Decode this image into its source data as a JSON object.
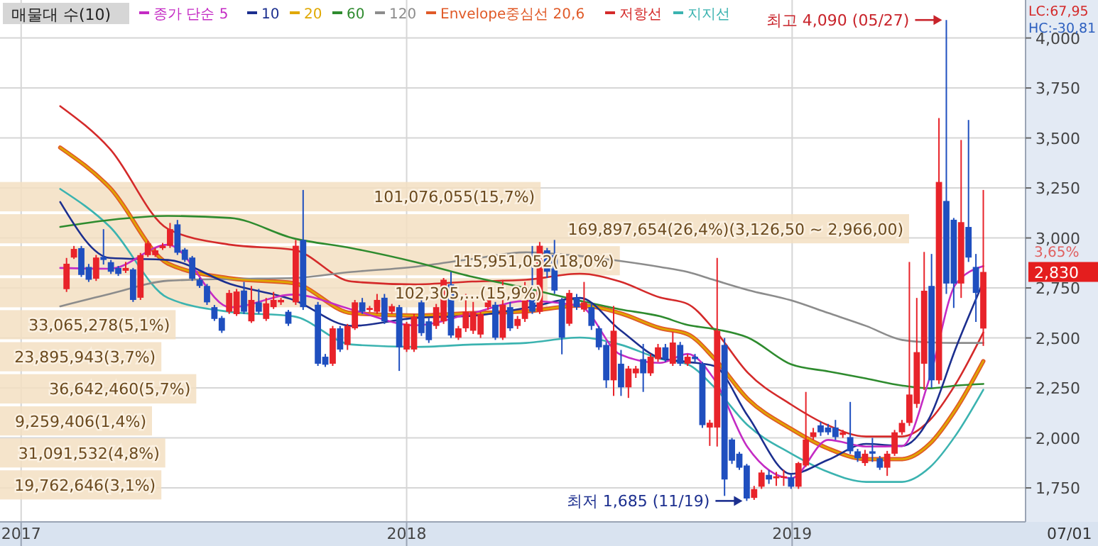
{
  "chart_data": {
    "type": "candlestick",
    "xlim": [
      "2016-12-12",
      "2019-08-10"
    ],
    "xticks": [
      {
        "value": "2017-01-01",
        "label": "2017"
      },
      {
        "value": "2018-01-01",
        "label": "2018"
      },
      {
        "value": "2019-01-01",
        "label": "2019"
      }
    ],
    "ylim": [
      1580,
      4190
    ],
    "yticks": [
      {
        "value": 1750,
        "label": "1,750"
      },
      {
        "value": 2000,
        "label": "2,000"
      },
      {
        "value": 2250,
        "label": "2,250"
      },
      {
        "value": 2500,
        "label": "2,500"
      },
      {
        "value": 2750,
        "label": "2,750"
      },
      {
        "value": 3000,
        "label": "3,000"
      },
      {
        "value": 3250,
        "label": "3,250"
      },
      {
        "value": 3500,
        "label": "3,500"
      },
      {
        "value": 3750,
        "label": "3,750"
      },
      {
        "value": 4000,
        "label": "4,000"
      }
    ],
    "grid": true,
    "legend": "top left",
    "x": [
      "2017-02-13",
      "2017-02-20",
      "2017-02-27",
      "2017-03-06",
      "2017-03-13",
      "2017-03-20",
      "2017-03-27",
      "2017-04-03",
      "2017-04-10",
      "2017-04-17",
      "2017-04-24",
      "2017-05-01",
      "2017-05-08",
      "2017-05-15",
      "2017-05-22",
      "2017-05-29",
      "2017-06-05",
      "2017-06-12",
      "2017-06-19",
      "2017-06-26",
      "2017-07-03",
      "2017-07-10",
      "2017-07-17",
      "2017-07-24",
      "2017-07-31",
      "2017-08-07",
      "2017-08-14",
      "2017-08-21",
      "2017-08-28",
      "2017-09-04",
      "2017-09-11",
      "2017-09-18",
      "2017-09-25",
      "2017-10-09",
      "2017-10-16",
      "2017-10-23",
      "2017-10-30",
      "2017-11-06",
      "2017-11-13",
      "2017-11-20",
      "2017-11-27",
      "2017-12-04",
      "2017-12-11",
      "2017-12-18",
      "2017-12-25",
      "2018-01-01",
      "2018-01-08",
      "2018-01-15",
      "2018-01-22",
      "2018-01-29",
      "2018-02-05",
      "2018-02-12",
      "2018-02-19",
      "2018-02-26",
      "2018-03-05",
      "2018-03-12",
      "2018-03-19",
      "2018-03-26",
      "2018-04-02",
      "2018-04-09",
      "2018-04-16",
      "2018-04-23",
      "2018-04-30",
      "2018-05-07",
      "2018-05-14",
      "2018-05-21",
      "2018-05-28",
      "2018-06-04",
      "2018-06-11",
      "2018-06-18",
      "2018-06-25",
      "2018-07-02",
      "2018-07-09",
      "2018-07-16",
      "2018-07-23",
      "2018-07-30",
      "2018-08-06",
      "2018-08-13",
      "2018-08-20",
      "2018-08-27",
      "2018-09-03",
      "2018-09-10",
      "2018-09-17",
      "2018-09-24",
      "2018-10-01",
      "2018-10-08",
      "2018-10-15",
      "2018-10-22",
      "2018-10-29",
      "2018-11-05",
      "2018-11-12",
      "2018-11-19",
      "2018-11-26",
      "2018-12-03",
      "2018-12-10",
      "2018-12-17",
      "2018-12-24",
      "2018-12-31",
      "2019-01-07",
      "2019-01-14",
      "2019-01-21",
      "2019-01-28",
      "2019-02-04",
      "2019-02-11",
      "2019-02-18",
      "2019-02-25",
      "2019-03-04",
      "2019-03-11",
      "2019-03-18",
      "2019-03-25",
      "2019-04-01",
      "2019-04-08",
      "2019-04-15",
      "2019-04-22",
      "2019-04-29",
      "2019-05-06",
      "2019-05-13",
      "2019-05-20",
      "2019-05-27",
      "2019-06-03",
      "2019-06-10",
      "2019-06-17",
      "2019-06-24",
      "2019-07-01"
    ],
    "ohlc": [
      [
        2744,
        2900,
        2730,
        2871
      ],
      [
        2902,
        2960,
        2895,
        2945
      ],
      [
        2949,
        2960,
        2805,
        2815
      ],
      [
        2855,
        2870,
        2780,
        2791
      ],
      [
        2796,
        2915,
        2785,
        2902
      ],
      [
        2905,
        3044,
        2867,
        2890
      ],
      [
        2879,
        2890,
        2820,
        2831
      ],
      [
        2850,
        2860,
        2810,
        2820
      ],
      [
        2836,
        2880,
        2825,
        2850
      ],
      [
        2843,
        2850,
        2680,
        2690
      ],
      [
        2701,
        2925,
        2690,
        2914
      ],
      [
        2914,
        2985,
        2905,
        2973
      ],
      [
        2914,
        2950,
        2905,
        2938
      ],
      [
        2949,
        2975,
        2940,
        2961
      ],
      [
        2961,
        3075,
        2950,
        3044
      ],
      [
        3068,
        3090,
        2915,
        2926
      ],
      [
        2942,
        2950,
        2880,
        2890
      ],
      [
        2902,
        2910,
        2785,
        2796
      ],
      [
        2791,
        2800,
        2750,
        2760
      ],
      [
        2760,
        2770,
        2665,
        2678
      ],
      [
        2654,
        2665,
        2585,
        2595
      ],
      [
        2600,
        2610,
        2525,
        2536
      ],
      [
        2631,
        2740,
        2620,
        2725
      ],
      [
        2619,
        2745,
        2610,
        2732
      ],
      [
        2737,
        2780,
        2620,
        2631
      ],
      [
        2583,
        2760,
        2575,
        2690
      ],
      [
        2678,
        2745,
        2620,
        2631
      ],
      [
        2595,
        2700,
        2585,
        2673
      ],
      [
        2654,
        2730,
        2645,
        2690
      ],
      [
        2678,
        2700,
        2665,
        2690
      ],
      [
        2631,
        2640,
        2560,
        2571
      ],
      [
        2678,
        2990,
        2665,
        2961
      ],
      [
        2990,
        3240,
        2640,
        2654
      ],
      [
        2666,
        2680,
        2360,
        2371
      ],
      [
        2406,
        2420,
        2355,
        2366
      ],
      [
        2371,
        2560,
        2360,
        2548
      ],
      [
        2548,
        2560,
        2430,
        2442
      ],
      [
        2465,
        2570,
        2440,
        2560
      ],
      [
        2548,
        2690,
        2540,
        2678
      ],
      [
        2678,
        2700,
        2620,
        2631
      ],
      [
        2640,
        2660,
        2630,
        2650
      ],
      [
        2631,
        2720,
        2620,
        2690
      ],
      [
        2701,
        2720,
        2570,
        2583
      ],
      [
        2631,
        2670,
        2620,
        2659
      ],
      [
        2654,
        2665,
        2335,
        2453
      ],
      [
        2442,
        2580,
        2430,
        2571
      ],
      [
        2442,
        2620,
        2430,
        2607
      ],
      [
        2678,
        2690,
        2510,
        2524
      ],
      [
        2583,
        2600,
        2475,
        2489
      ],
      [
        2560,
        2670,
        2545,
        2654
      ],
      [
        2583,
        2800,
        2570,
        2791
      ],
      [
        2768,
        2830,
        2500,
        2512
      ],
      [
        2501,
        2560,
        2490,
        2548
      ],
      [
        2548,
        2720,
        2530,
        2631
      ],
      [
        2536,
        2680,
        2520,
        2630
      ],
      [
        2517,
        2630,
        2500,
        2619
      ],
      [
        2654,
        2700,
        2640,
        2690
      ],
      [
        2666,
        2680,
        2490,
        2501
      ],
      [
        2501,
        2790,
        2490,
        2666
      ],
      [
        2654,
        2680,
        2535,
        2548
      ],
      [
        2560,
        2610,
        2545,
        2595
      ],
      [
        2595,
        2780,
        2580,
        2690
      ],
      [
        2690,
        2960,
        2620,
        2631
      ],
      [
        2631,
        2980,
        2620,
        2961
      ],
      [
        2938,
        2950,
        2800,
        2831
      ],
      [
        2914,
        2990,
        2720,
        2737
      ],
      [
        2690,
        2700,
        2418,
        2501
      ],
      [
        2571,
        2740,
        2560,
        2725
      ],
      [
        2701,
        2720,
        2640,
        2654
      ],
      [
        2642,
        2780,
        2630,
        2678
      ],
      [
        2654,
        2670,
        2540,
        2560
      ],
      [
        2548,
        2560,
        2440,
        2453
      ],
      [
        2465,
        2480,
        2250,
        2288
      ],
      [
        2288,
        2660,
        2210,
        2536
      ],
      [
        2371,
        2440,
        2210,
        2253
      ],
      [
        2253,
        2360,
        2200,
        2347
      ],
      [
        2323,
        2360,
        2300,
        2347
      ],
      [
        2394,
        2470,
        2230,
        2323
      ],
      [
        2323,
        2420,
        2310,
        2406
      ],
      [
        2394,
        2470,
        2380,
        2453
      ],
      [
        2453,
        2470,
        2380,
        2394
      ],
      [
        2371,
        2530,
        2360,
        2477
      ],
      [
        2465,
        2480,
        2360,
        2371
      ],
      [
        2371,
        2420,
        2360,
        2406
      ],
      [
        2406,
        2420,
        2380,
        2394
      ],
      [
        2371,
        2380,
        2050,
        2064
      ],
      [
        2052,
        2090,
        1960,
        2076
      ],
      [
        2052,
        2900,
        1957,
        2536
      ],
      [
        2465,
        2500,
        1710,
        1792
      ],
      [
        1992,
        2000,
        1870,
        1886
      ],
      [
        1921,
        1930,
        1840,
        1851
      ],
      [
        1862,
        1870,
        1685,
        1697
      ],
      [
        1700,
        1760,
        1690,
        1744
      ],
      [
        1756,
        1840,
        1745,
        1827
      ],
      [
        1815,
        1840,
        1770,
        1792
      ],
      [
        1798,
        1830,
        1760,
        1808
      ],
      [
        1800,
        1840,
        1760,
        1808
      ],
      [
        1803,
        1820,
        1745,
        1756
      ],
      [
        1756,
        1880,
        1745,
        1874
      ],
      [
        1862,
        2230,
        1855,
        1992
      ],
      [
        2004,
        2050,
        1990,
        2028
      ],
      [
        2063,
        2080,
        2010,
        2028
      ],
      [
        2052,
        2070,
        2015,
        2028
      ],
      [
        2052,
        2090,
        1990,
        2004
      ],
      [
        2015,
        2040,
        2000,
        2028
      ],
      [
        2004,
        2180,
        1920,
        1933
      ],
      [
        1933,
        1945,
        1880,
        1898
      ],
      [
        1874,
        1940,
        1860,
        1921
      ],
      [
        1933,
        2000,
        1880,
        1921
      ],
      [
        1898,
        1910,
        1840,
        1851
      ],
      [
        1851,
        1935,
        1810,
        1921
      ],
      [
        1921,
        2040,
        1910,
        2028
      ],
      [
        2028,
        2090,
        2015,
        2075
      ],
      [
        2075,
        2880,
        2060,
        2217
      ],
      [
        2170,
        2700,
        2150,
        2429
      ],
      [
        2371,
        2930,
        2240,
        2736
      ],
      [
        2760,
        2920,
        2250,
        2288
      ],
      [
        2288,
        3600,
        2270,
        3280
      ],
      [
        3185,
        4090,
        2720,
        2772
      ],
      [
        3091,
        3100,
        2650,
        2772
      ],
      [
        2772,
        3490,
        2700,
        3079
      ],
      [
        3055,
        3590,
        2880,
        2902
      ],
      [
        2855,
        2920,
        2580,
        2725
      ],
      [
        2547,
        3240,
        2460,
        2830
      ]
    ],
    "colors": [
      "#e8232a",
      "#e8232a",
      "#1f4fbf",
      "#1f4fbf",
      "#e8232a",
      "#1f4fbf",
      "#1f4fbf",
      "#1f4fbf",
      "#e8232a",
      "#1f4fbf",
      "#e8232a",
      "#e8232a",
      "#e8232a",
      "#e8232a",
      "#e8232a",
      "#1f4fbf",
      "#1f4fbf",
      "#1f4fbf",
      "#1f4fbf",
      "#1f4fbf",
      "#1f4fbf",
      "#1f4fbf",
      "#e8232a",
      "#e8232a",
      "#1f4fbf",
      "#e8232a",
      "#1f4fbf",
      "#e8232a",
      "#e8232a",
      "#e8232a",
      "#1f4fbf",
      "#e8232a",
      "#1f4fbf",
      "#1f4fbf",
      "#1f4fbf",
      "#e8232a",
      "#1f4fbf",
      "#e8232a",
      "#e8232a",
      "#1f4fbf",
      "#e8232a",
      "#e8232a",
      "#1f4fbf",
      "#e8232a",
      "#1f4fbf",
      "#e8232a",
      "#e8232a",
      "#1f4fbf",
      "#1f4fbf",
      "#e8232a",
      "#e8232a",
      "#1f4fbf",
      "#e8232a",
      "#e8232a",
      "#e8232a",
      "#e8232a",
      "#e8232a",
      "#1f4fbf",
      "#e8232a",
      "#1f4fbf",
      "#e8232a",
      "#e8232a",
      "#1f4fbf",
      "#e8232a",
      "#1f4fbf",
      "#1f4fbf",
      "#1f4fbf",
      "#e8232a",
      "#1f4fbf",
      "#e8232a",
      "#1f4fbf",
      "#1f4fbf",
      "#1f4fbf",
      "#e8232a",
      "#1f4fbf",
      "#e8232a",
      "#e8232a",
      "#1f4fbf",
      "#e8232a",
      "#e8232a",
      "#1f4fbf",
      "#e8232a",
      "#1f4fbf",
      "#e8232a",
      "#1f4fbf",
      "#1f4fbf",
      "#e8232a",
      "#e8232a",
      "#1f4fbf",
      "#1f4fbf",
      "#1f4fbf",
      "#1f4fbf",
      "#e8232a",
      "#e8232a",
      "#1f4fbf",
      "#e8232a",
      "#e8232a",
      "#1f4fbf",
      "#e8232a",
      "#e8232a",
      "#e8232a",
      "#1f4fbf",
      "#1f4fbf",
      "#1f4fbf",
      "#e8232a",
      "#1f4fbf",
      "#1f4fbf",
      "#e8232a",
      "#1f4fbf",
      "#1f4fbf",
      "#e8232a",
      "#e8232a",
      "#e8232a",
      "#e8232a",
      "#e8232a",
      "#e8232a",
      "#1f4fbf",
      "#e8232a",
      "#1f4fbf",
      "#1f4fbf",
      "#e8232a",
      "#1f4fbf",
      "#1f4fbf",
      "#e8232a"
    ],
    "series": [
      {
        "type": "line",
        "name": "종가 단순 5",
        "color": "#c42bc4",
        "x": [
          "2017-02-07",
          "2017-03-26",
          "2017-05-20",
          "2017-07-18",
          "2017-09-16",
          "2017-11-10",
          "2018-01-09",
          "2018-03-04",
          "2018-04-24",
          "2018-06-14",
          "2018-07-22",
          "2018-08-29",
          "2018-09-24",
          "2018-10-19",
          "2018-11-20",
          "2018-12-31",
          "2019-02-04",
          "2019-03-12",
          "2019-04-15",
          "2019-05-11",
          "2019-06-05",
          "2019-07-01"
        ],
        "values": [
          2850,
          2846,
          2966,
          2653,
          2717,
          2642,
          2563,
          2624,
          2685,
          2659,
          2418,
          2375,
          2420,
          2295,
          1952,
          1798,
          1990,
          1957,
          1959,
          2297,
          2770,
          2859
        ]
      },
      {
        "type": "line",
        "name": "10",
        "color": "#1c2f8f",
        "x": [
          "2017-02-07",
          "2017-03-26",
          "2017-05-20",
          "2017-07-18",
          "2017-09-16",
          "2017-11-10",
          "2018-01-09",
          "2018-03-04",
          "2018-04-24",
          "2018-06-14",
          "2018-07-22",
          "2018-08-29",
          "2018-09-24",
          "2018-10-19",
          "2018-11-20",
          "2018-12-31",
          "2019-02-04",
          "2019-03-12",
          "2019-04-15",
          "2019-05-11",
          "2019-06-05",
          "2019-07-01"
        ],
        "values": [
          3180,
          2900,
          2890,
          2770,
          2690,
          2560,
          2600,
          2610,
          2650,
          2700,
          2540,
          2400,
          2380,
          2360,
          2110,
          1820,
          1890,
          1970,
          1960,
          2100,
          2450,
          2780
        ]
      },
      {
        "type": "line",
        "name": "20",
        "color": "#e0a800",
        "x": [
          "2017-02-07",
          "2017-03-26",
          "2017-05-20",
          "2017-07-18",
          "2017-09-16",
          "2017-11-10",
          "2018-01-09",
          "2018-03-04",
          "2018-04-24",
          "2018-06-14",
          "2018-07-22",
          "2018-08-29",
          "2018-09-24",
          "2018-10-19",
          "2018-11-20",
          "2018-12-31",
          "2019-02-04",
          "2019-03-12",
          "2019-04-15",
          "2019-05-11",
          "2019-06-05",
          "2019-07-01"
        ],
        "values": [
          3452,
          3251,
          2872,
          2798,
          2774,
          2624,
          2612,
          2624,
          2633,
          2662,
          2624,
          2549,
          2519,
          2399,
          2195,
          2045,
          1947,
          1894,
          1894,
          1969,
          2143,
          2384
        ]
      },
      {
        "type": "line",
        "name": "60",
        "color": "#2e8b2e",
        "x": [
          "2017-02-07",
          "2017-03-26",
          "2017-05-20",
          "2017-07-18",
          "2017-09-16",
          "2017-11-10",
          "2018-01-09",
          "2018-03-04",
          "2018-04-24",
          "2018-06-14",
          "2018-07-22",
          "2018-08-29",
          "2018-09-24",
          "2018-10-19",
          "2018-11-20",
          "2018-12-31",
          "2019-02-04",
          "2019-03-12",
          "2019-04-15",
          "2019-05-11",
          "2019-06-05",
          "2019-07-01"
        ],
        "values": [
          3055,
          3090,
          3110,
          3100,
          2998,
          2949,
          2880,
          2806,
          2749,
          2686,
          2643,
          2608,
          2565,
          2545,
          2502,
          2368,
          2333,
          2297,
          2262,
          2248,
          2262,
          2270
        ]
      },
      {
        "type": "line",
        "name": "120",
        "color": "#8c8c8c",
        "x": [
          "2017-02-07",
          "2017-03-26",
          "2017-05-20",
          "2017-07-18",
          "2017-09-16",
          "2017-11-10",
          "2018-01-09",
          "2018-03-04",
          "2018-04-24",
          "2018-06-14",
          "2018-07-22",
          "2018-08-29",
          "2018-09-24",
          "2018-10-19",
          "2018-11-20",
          "2018-12-31",
          "2019-02-04",
          "2019-03-12",
          "2019-04-15",
          "2019-05-11",
          "2019-06-05",
          "2019-07-01"
        ],
        "values": [
          2658,
          2720,
          2786,
          2795,
          2800,
          2830,
          2856,
          2895,
          2928,
          2910,
          2885,
          2855,
          2830,
          2790,
          2740,
          2688,
          2625,
          2560,
          2490,
          2478,
          2475,
          2475
        ]
      },
      {
        "type": "line",
        "name": "Envelope중심선 20,6",
        "color": "#e05a28",
        "x": [
          "2017-02-07",
          "2017-03-26",
          "2017-05-20",
          "2017-07-18",
          "2017-09-16",
          "2017-11-10",
          "2018-01-09",
          "2018-03-04",
          "2018-04-24",
          "2018-06-14",
          "2018-07-22",
          "2018-08-29",
          "2018-09-24",
          "2018-10-19",
          "2018-11-20",
          "2018-12-31",
          "2019-02-04",
          "2019-03-12",
          "2019-04-15",
          "2019-05-11",
          "2019-06-05",
          "2019-07-01"
        ],
        "values": [
          3452,
          3251,
          2872,
          2798,
          2774,
          2624,
          2612,
          2624,
          2633,
          2662,
          2624,
          2549,
          2519,
          2399,
          2195,
          2045,
          1947,
          1894,
          1894,
          1969,
          2143,
          2384
        ]
      },
      {
        "type": "line",
        "name": "저항선",
        "color": "#d42a2a",
        "x": [
          "2017-02-07",
          "2017-03-26",
          "2017-05-20",
          "2017-07-18",
          "2017-09-16",
          "2017-11-10",
          "2018-01-09",
          "2018-03-04",
          "2018-04-24",
          "2018-06-14",
          "2018-07-22",
          "2018-08-29",
          "2018-09-24",
          "2018-10-19",
          "2018-11-20",
          "2018-12-31",
          "2019-02-04",
          "2019-03-12",
          "2019-04-15",
          "2019-05-11",
          "2019-06-05",
          "2019-07-01"
        ],
        "values": [
          3659,
          3446,
          3045,
          2966,
          2941,
          2782,
          2768,
          2782,
          2791,
          2821,
          2782,
          2702,
          2670,
          2543,
          2326,
          2167,
          2063,
          2007,
          2007,
          2087,
          2271,
          2527
        ]
      },
      {
        "type": "line",
        "name": "지지선",
        "color": "#3bb3b0",
        "x": [
          "2017-02-07",
          "2017-03-26",
          "2017-05-20",
          "2017-07-18",
          "2017-09-16",
          "2017-11-10",
          "2018-01-09",
          "2018-03-04",
          "2018-04-24",
          "2018-06-14",
          "2018-07-22",
          "2018-08-29",
          "2018-09-24",
          "2018-10-19",
          "2018-11-20",
          "2018-12-31",
          "2019-02-04",
          "2019-03-12",
          "2019-04-15",
          "2019-05-11",
          "2019-06-05",
          "2019-07-01"
        ],
        "values": [
          3245,
          3056,
          2700,
          2630,
          2608,
          2467,
          2455,
          2467,
          2475,
          2502,
          2467,
          2396,
          2368,
          2255,
          2063,
          1922,
          1830,
          1780,
          1780,
          1851,
          2014,
          2241
        ]
      }
    ],
    "bands": [
      {
        "axis": "y",
        "from": 1685,
        "to": 1845,
        "label": "19,762,646(3,1%)",
        "color": "#f3dfc2"
      },
      {
        "axis": "y",
        "from": 1845,
        "to": 2005,
        "label": "31,091,532(4,8%)",
        "color": "#f3dfc2"
      },
      {
        "axis": "y",
        "from": 2005,
        "to": 2165,
        "label": "9,259,406(1,4%)",
        "color": "#f3dfc2"
      },
      {
        "axis": "y",
        "from": 2165,
        "to": 2326,
        "label": "36,642,460(5,7%)",
        "color": "#f3dfc2"
      },
      {
        "axis": "y",
        "from": 2326,
        "to": 2486,
        "label": "23,895,943(3,7%)",
        "color": "#f3dfc2"
      },
      {
        "axis": "y",
        "from": 2486,
        "to": 2646,
        "label": "33,065,278(5,1%)",
        "color": "#f3dfc2"
      },
      {
        "axis": "y",
        "from": 2646,
        "to": 2806,
        "label": "102,305,…(15,9%)",
        "color": "#f3dfc2"
      },
      {
        "axis": "y",
        "from": 2806,
        "to": 2966,
        "label": "115,951,052(18,0%)",
        "color": "#f3dfc2"
      },
      {
        "axis": "y",
        "from": 2966,
        "to": 3126,
        "label": "169,897,654(26,4%)(3,126,50 ~ 2,966,00)",
        "color": "#f3dfc2"
      },
      {
        "axis": "y",
        "from": 3126,
        "to": 3287,
        "label": "101,076,055(15,7%)",
        "color": "#f3dfc2"
      }
    ],
    "annotations": [
      "매물대 수(10)",
      "LC:67,95",
      "HC:-30,81",
      "2,830",
      "3,65%",
      "07/01",
      {
        "text": "최고 4,090 (05/27)",
        "x": "2019-05-27",
        "y": 4090
      },
      {
        "text": "최저 1,685 (11/19)",
        "x": "2018-11-19",
        "y": 1685
      }
    ]
  }
}
